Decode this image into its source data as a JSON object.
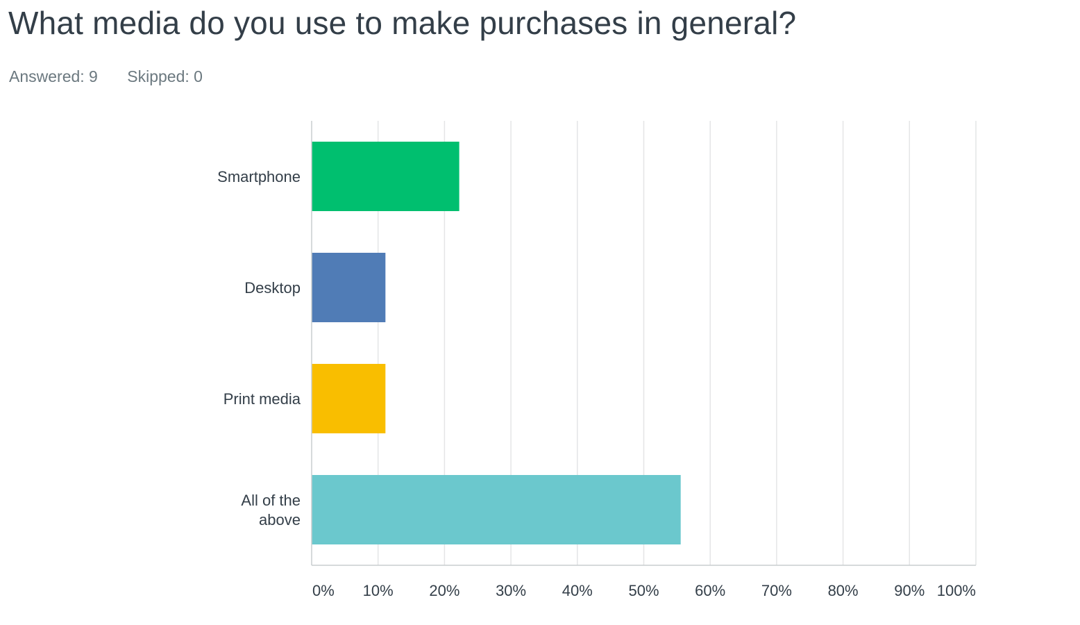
{
  "question": {
    "title": "What media do you use to make purchases in general?",
    "answered_label": "Answered: 9",
    "skipped_label": "Skipped: 0"
  },
  "chart_data": {
    "type": "bar",
    "orientation": "horizontal",
    "categories": [
      "Smartphone",
      "Desktop",
      "Print media",
      "All of the above"
    ],
    "category_lines": [
      [
        "Smartphone"
      ],
      [
        "Desktop"
      ],
      [
        "Print media"
      ],
      [
        "All of the",
        "above"
      ]
    ],
    "values": [
      22.22,
      11.11,
      11.11,
      55.56
    ],
    "value_unit": "%",
    "colors": [
      "#00bf6f",
      "#507cb6",
      "#f9be00",
      "#6bc8cd"
    ],
    "xlim": [
      0,
      100
    ],
    "ticks": [
      "0%",
      "10%",
      "20%",
      "30%",
      "40%",
      "50%",
      "60%",
      "70%",
      "80%",
      "90%",
      "100%"
    ],
    "grid": true,
    "legend": "none"
  }
}
